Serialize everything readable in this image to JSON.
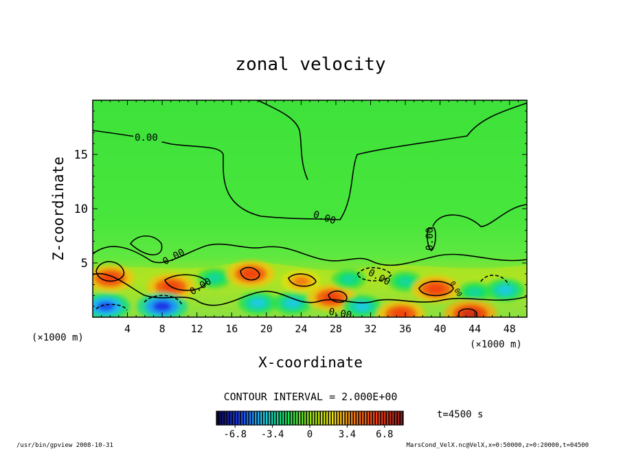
{
  "chart_data": {
    "type": "heatmap",
    "title": "zonal velocity",
    "xlabel": "X-coordinate",
    "ylabel": "Z-coordinate",
    "x_unit": "(×1000 m)",
    "y_unit": "(×1000 m)",
    "xlim": [
      0,
      50
    ],
    "ylim": [
      0,
      20
    ],
    "x_ticks": [
      4,
      8,
      12,
      16,
      20,
      24,
      28,
      32,
      36,
      40,
      44,
      48
    ],
    "y_ticks": [
      5,
      10,
      15
    ],
    "contour_interval": "CONTOUR INTERVAL = 2.000E+00",
    "contour_labels": [
      "0.00",
      "0.00",
      "0.00",
      "0.00",
      "0.00",
      "0.00",
      "0.00",
      "0.00"
    ],
    "time_label": "t=4500 s",
    "colorbar_ticks": [
      "-6.8",
      "-3.4",
      "0",
      "3.4",
      "6.8"
    ],
    "colorbar_range": [
      -8.5,
      8.5
    ],
    "colormap": [
      "#0a0040",
      "#1c3cf0",
      "#1cc8f0",
      "#10e060",
      "#90e010",
      "#f0e010",
      "#f07010",
      "#f03a10",
      "#8a1a1a"
    ],
    "cells": [
      {
        "x": 2,
        "z": 3.6,
        "v": 6
      },
      {
        "x": 1.5,
        "z": 1.0,
        "v": -6
      },
      {
        "x": 9,
        "z": 2.8,
        "v": 6
      },
      {
        "x": 8,
        "z": 1.0,
        "v": -6.5
      },
      {
        "x": 14,
        "z": 3.6,
        "v": -3
      },
      {
        "x": 18.2,
        "z": 4.0,
        "v": 6
      },
      {
        "x": 19,
        "z": 1.3,
        "v": -4
      },
      {
        "x": 24,
        "z": 3.3,
        "v": 4
      },
      {
        "x": 23,
        "z": 1.3,
        "v": -4
      },
      {
        "x": 27.5,
        "z": 1.8,
        "v": 6
      },
      {
        "x": 29.5,
        "z": 3.5,
        "v": -3
      },
      {
        "x": 31,
        "z": 1.0,
        "v": -4
      },
      {
        "x": 35.5,
        "z": 0.3,
        "v": 6
      },
      {
        "x": 36,
        "z": 3.3,
        "v": -3
      },
      {
        "x": 39.5,
        "z": 2.6,
        "v": 6
      },
      {
        "x": 44,
        "z": 2.3,
        "v": -3
      },
      {
        "x": 43.5,
        "z": 0.3,
        "v": 7
      },
      {
        "x": 47.5,
        "z": 2.5,
        "v": -4
      }
    ]
  },
  "footer": {
    "left": "/usr/bin/gpview   2008-10-31",
    "right": "MarsCond_VelX.nc@VelX,x=0:50000,z=0:20000,t=04500"
  }
}
